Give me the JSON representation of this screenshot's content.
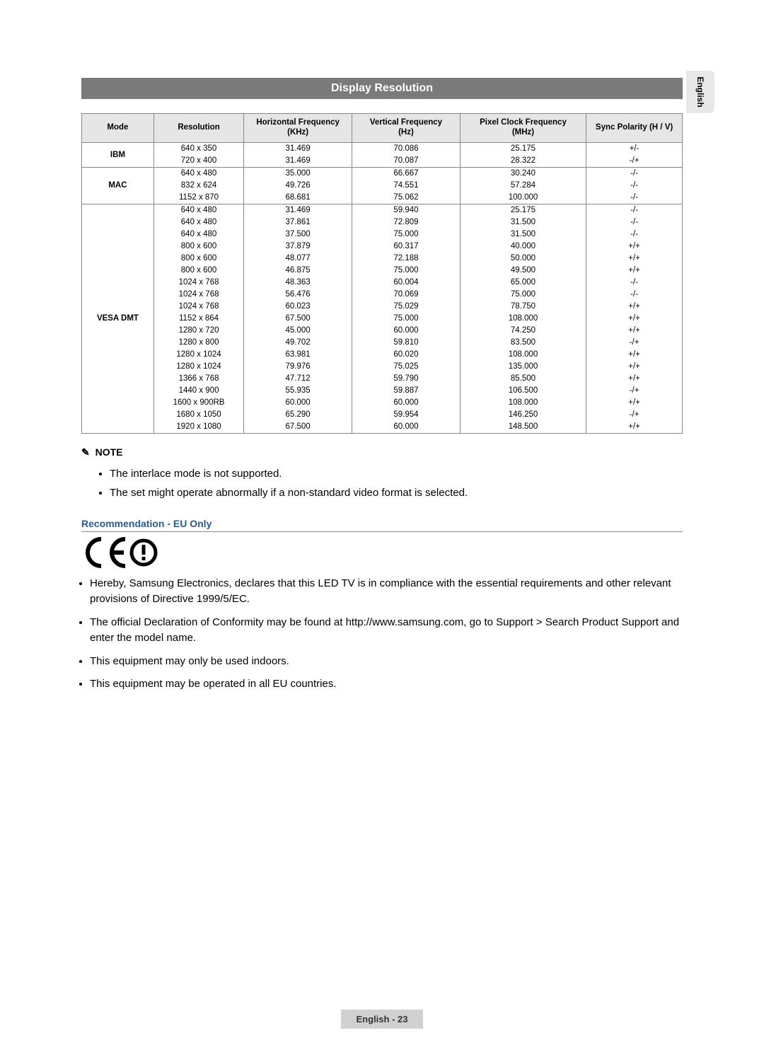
{
  "side_tab": "English",
  "title": "Display Resolution",
  "columns": [
    "Mode",
    "Resolution",
    "Horizontal Frequency\n(KHz)",
    "Vertical Frequency\n(Hz)",
    "Pixel Clock Frequency\n(MHz)",
    "Sync Polarity (H / V)"
  ],
  "col_widths": [
    "12%",
    "15%",
    "18%",
    "18%",
    "21%",
    "16%"
  ],
  "groups": [
    {
      "mode": "IBM",
      "rows": [
        [
          "640 x 350",
          "31.469",
          "70.086",
          "25.175",
          "+/-"
        ],
        [
          "720 x 400",
          "31.469",
          "70.087",
          "28.322",
          "-/+"
        ]
      ]
    },
    {
      "mode": "MAC",
      "rows": [
        [
          "640 x 480",
          "35.000",
          "66.667",
          "30.240",
          "-/-"
        ],
        [
          "832 x 624",
          "49.726",
          "74.551",
          "57.284",
          "-/-"
        ],
        [
          "1152 x 870",
          "68.681",
          "75.062",
          "100.000",
          "-/-"
        ]
      ]
    },
    {
      "mode": "VESA DMT",
      "rows": [
        [
          "640 x 480",
          "31.469",
          "59.940",
          "25.175",
          "-/-"
        ],
        [
          "640 x 480",
          "37.861",
          "72.809",
          "31.500",
          "-/-"
        ],
        [
          "640 x 480",
          "37.500",
          "75.000",
          "31.500",
          "-/-"
        ],
        [
          "800 x 600",
          "37.879",
          "60.317",
          "40.000",
          "+/+"
        ],
        [
          "800 x 600",
          "48.077",
          "72.188",
          "50.000",
          "+/+"
        ],
        [
          "800 x 600",
          "46.875",
          "75.000",
          "49.500",
          "+/+"
        ],
        [
          "1024 x 768",
          "48.363",
          "60.004",
          "65.000",
          "-/-"
        ],
        [
          "1024 x 768",
          "56.476",
          "70.069",
          "75.000",
          "-/-"
        ],
        [
          "1024 x 768",
          "60.023",
          "75.029",
          "78.750",
          "+/+"
        ],
        [
          "1152 x 864",
          "67.500",
          "75.000",
          "108.000",
          "+/+"
        ],
        [
          "1280 x 720",
          "45.000",
          "60.000",
          "74.250",
          "+/+"
        ],
        [
          "1280 x 800",
          "49.702",
          "59.810",
          "83.500",
          "-/+"
        ],
        [
          "1280 x 1024",
          "63.981",
          "60.020",
          "108.000",
          "+/+"
        ],
        [
          "1280 x 1024",
          "79.976",
          "75.025",
          "135.000",
          "+/+"
        ],
        [
          "1366 x 768",
          "47.712",
          "59.790",
          "85.500",
          "+/+"
        ],
        [
          "1440 x 900",
          "55.935",
          "59.887",
          "106.500",
          "-/+"
        ],
        [
          "1600 x 900RB",
          "60.000",
          "60.000",
          "108.000",
          "+/+"
        ],
        [
          "1680 x 1050",
          "65.290",
          "59.954",
          "146.250",
          "-/+"
        ],
        [
          "1920 x 1080",
          "67.500",
          "60.000",
          "148.500",
          "+/+"
        ]
      ]
    }
  ],
  "note": {
    "icon": "✎",
    "label": "NOTE",
    "items": [
      "The interlace mode is not supported.",
      "The set might operate abnormally if a non-standard video format is selected."
    ]
  },
  "recommendation": {
    "header": "Recommendation - EU Only",
    "items": [
      "Hereby, Samsung Electronics, declares that this LED TV is in compliance with the essential requirements and other relevant provisions of Directive 1999/5/EC.",
      "The official Declaration of Conformity may be found at http://www.samsung.com, go to Support > Search Product Support and enter the model name.",
      "This equipment may only be used indoors.",
      "This equipment may be operated in all EU countries."
    ]
  },
  "footer": "English - 23",
  "colors": {
    "title_bg": "#7a7a7a",
    "header_bg": "#e6e6e6",
    "rec_color": "#2a5a8a",
    "footer_bg": "#d0d0d0"
  }
}
